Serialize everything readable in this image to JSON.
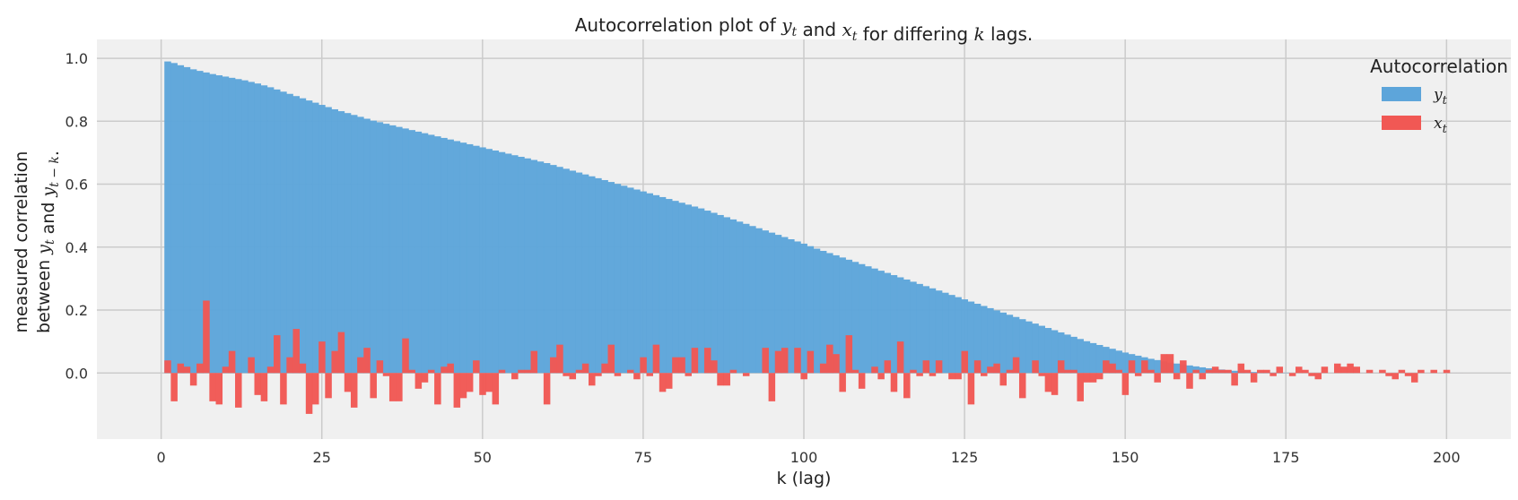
{
  "chart_data": {
    "type": "bar",
    "title_parts": [
      "Autocorrelation plot of ",
      "y",
      "t",
      " and ",
      "x",
      "t",
      " for differing ",
      "k",
      " lags."
    ],
    "xlabel": "k (lag)",
    "ylabel_line1": "measured correlation",
    "ylabel_line2_parts": [
      "between ",
      "y",
      "t",
      " and ",
      "y",
      "t − k",
      "."
    ],
    "xlim": [
      -10,
      210
    ],
    "ylim": [
      -0.21,
      1.06
    ],
    "x_ticks": [
      0,
      25,
      50,
      75,
      100,
      125,
      150,
      175,
      200
    ],
    "y_ticks": [
      0.0,
      0.2,
      0.4,
      0.6,
      0.8,
      1.0
    ],
    "y_tick_labels": [
      "0.0",
      "0.2",
      "0.4",
      "0.6",
      "0.8",
      "1.0"
    ],
    "grid": true,
    "legend": {
      "title": "Autocorrelation",
      "placement": "top-right"
    },
    "series": [
      {
        "name": "y",
        "subscript": "t",
        "color": "#5DA5DA",
        "x_start": 1,
        "values": [
          0.99,
          0.985,
          0.978,
          0.972,
          0.965,
          0.96,
          0.955,
          0.95,
          0.946,
          0.942,
          0.938,
          0.934,
          0.93,
          0.925,
          0.92,
          0.914,
          0.908,
          0.901,
          0.894,
          0.887,
          0.88,
          0.873,
          0.866,
          0.859,
          0.852,
          0.845,
          0.838,
          0.832,
          0.826,
          0.82,
          0.814,
          0.808,
          0.802,
          0.797,
          0.792,
          0.787,
          0.782,
          0.777,
          0.772,
          0.767,
          0.762,
          0.757,
          0.752,
          0.747,
          0.742,
          0.737,
          0.732,
          0.727,
          0.722,
          0.717,
          0.712,
          0.707,
          0.702,
          0.697,
          0.692,
          0.687,
          0.682,
          0.677,
          0.672,
          0.667,
          0.661,
          0.655,
          0.649,
          0.643,
          0.637,
          0.631,
          0.625,
          0.619,
          0.613,
          0.607,
          0.601,
          0.595,
          0.589,
          0.583,
          0.577,
          0.571,
          0.565,
          0.559,
          0.553,
          0.547,
          0.541,
          0.535,
          0.529,
          0.523,
          0.516,
          0.509,
          0.502,
          0.495,
          0.488,
          0.481,
          0.474,
          0.467,
          0.46,
          0.453,
          0.446,
          0.439,
          0.432,
          0.425,
          0.418,
          0.411,
          0.403,
          0.395,
          0.388,
          0.381,
          0.374,
          0.367,
          0.36,
          0.353,
          0.346,
          0.339,
          0.332,
          0.325,
          0.318,
          0.311,
          0.304,
          0.297,
          0.29,
          0.283,
          0.276,
          0.269,
          0.262,
          0.255,
          0.248,
          0.241,
          0.234,
          0.227,
          0.22,
          0.213,
          0.206,
          0.199,
          0.192,
          0.185,
          0.178,
          0.171,
          0.164,
          0.157,
          0.15,
          0.143,
          0.136,
          0.129,
          0.122,
          0.115,
          0.108,
          0.101,
          0.095,
          0.089,
          0.083,
          0.077,
          0.071,
          0.065,
          0.06,
          0.055,
          0.05,
          0.045,
          0.041,
          0.037,
          0.033,
          0.03,
          0.027,
          0.024,
          0.021,
          0.018,
          0.015,
          0.013,
          0.011,
          0.009,
          0.007,
          0.005,
          0.004,
          0.003,
          0.002,
          0.002,
          0.001,
          0.001,
          0.001,
          0.0,
          0.0,
          0.0,
          0.0,
          0.0,
          0.0,
          0.0,
          0.0,
          0.0,
          0.0,
          0.0,
          0.0,
          0.0,
          0.0,
          0.0,
          0.0,
          0.0,
          0.0,
          0.0,
          0.0,
          0.0,
          0.0,
          0.0,
          0.0,
          0.0,
          0.0,
          0.0
        ]
      },
      {
        "name": "x",
        "subscript": "t",
        "color": "#F15854",
        "x_start": 1,
        "values": [
          0.04,
          -0.09,
          0.03,
          0.02,
          -0.04,
          0.03,
          0.23,
          -0.09,
          -0.1,
          0.02,
          0.07,
          -0.11,
          0.0,
          0.05,
          -0.07,
          -0.09,
          0.02,
          0.12,
          -0.1,
          0.05,
          0.14,
          0.03,
          -0.13,
          -0.1,
          0.1,
          -0.08,
          0.07,
          0.13,
          -0.06,
          -0.11,
          0.05,
          0.08,
          -0.08,
          0.04,
          -0.01,
          -0.09,
          -0.09,
          0.11,
          0.01,
          -0.05,
          -0.03,
          0.01,
          -0.1,
          0.02,
          0.03,
          -0.11,
          -0.08,
          -0.06,
          0.04,
          -0.07,
          -0.06,
          -0.1,
          0.01,
          0.0,
          -0.02,
          0.01,
          0.01,
          0.07,
          0.0,
          -0.1,
          0.05,
          0.09,
          -0.01,
          -0.02,
          0.01,
          0.03,
          -0.04,
          -0.01,
          0.03,
          0.09,
          -0.01,
          0.0,
          0.01,
          -0.02,
          0.05,
          -0.01,
          0.09,
          -0.06,
          -0.05,
          0.05,
          0.05,
          -0.01,
          0.08,
          0.0,
          0.08,
          0.04,
          -0.04,
          -0.04,
          0.01,
          0.0,
          -0.01,
          0.0,
          0.0,
          0.08,
          -0.09,
          0.07,
          0.08,
          0.0,
          0.08,
          -0.02,
          0.07,
          0.0,
          0.03,
          0.09,
          0.06,
          -0.06,
          0.12,
          0.01,
          -0.05,
          0.0,
          0.02,
          -0.02,
          0.04,
          -0.06,
          0.1,
          -0.08,
          0.01,
          -0.01,
          0.04,
          -0.01,
          0.04,
          0.0,
          -0.02,
          -0.02,
          0.07,
          -0.1,
          0.04,
          -0.01,
          0.02,
          0.03,
          -0.04,
          0.01,
          0.05,
          -0.08,
          0.0,
          0.04,
          -0.01,
          -0.06,
          -0.07,
          0.04,
          0.01,
          0.01,
          -0.09,
          -0.03,
          -0.03,
          -0.02,
          0.04,
          0.03,
          0.01,
          -0.07,
          0.04,
          -0.01,
          0.04,
          0.01,
          -0.03,
          0.06,
          0.06,
          -0.02,
          0.04,
          -0.05,
          0.01,
          -0.02,
          0.01,
          0.02,
          0.01,
          0.01,
          -0.04,
          0.03,
          0.01,
          -0.03,
          0.01,
          0.01,
          -0.01,
          0.02,
          0.0,
          -0.01,
          0.02,
          0.01,
          -0.01,
          -0.02,
          0.02,
          0.0,
          0.03,
          0.02,
          0.03,
          0.02,
          0.0,
          0.01,
          0.0,
          0.01,
          -0.01,
          -0.02,
          0.01,
          -0.01,
          -0.03,
          0.01,
          0.0,
          0.01,
          0.0,
          0.01,
          0.0,
          0.0,
          0.0
        ]
      }
    ]
  }
}
